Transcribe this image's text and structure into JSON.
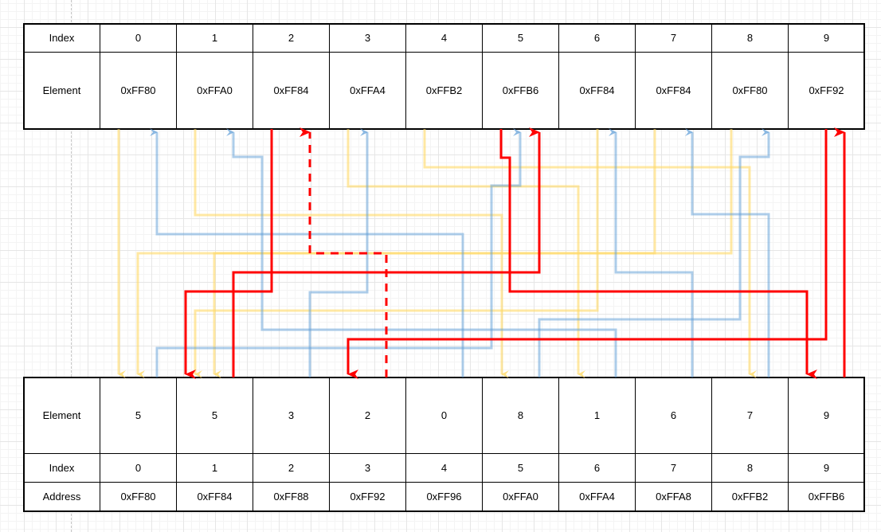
{
  "top_table": {
    "index_label": "Index",
    "element_label": "Element",
    "indices": [
      "0",
      "1",
      "2",
      "3",
      "4",
      "5",
      "6",
      "7",
      "8",
      "9"
    ],
    "elements": [
      "0xFF80",
      "0xFFA0",
      "0xFF84",
      "0xFFA4",
      "0xFFB2",
      "0xFFB6",
      "0xFF84",
      "0xFF84",
      "0xFF80",
      "0xFF92"
    ]
  },
  "bottom_table": {
    "element_label": "Element",
    "index_label": "Index",
    "address_label": "Address",
    "elements": [
      "5",
      "5",
      "3",
      "2",
      "0",
      "8",
      "1",
      "6",
      "7",
      "9"
    ],
    "indices": [
      "0",
      "1",
      "2",
      "3",
      "4",
      "5",
      "6",
      "7",
      "8",
      "9"
    ],
    "addresses": [
      "0xFF80",
      "0xFF84",
      "0xFF88",
      "0xFF92",
      "0xFF96",
      "0xFFA0",
      "0xFFA4",
      "0xFFA8",
      "0xFFB2",
      "0xFFB6"
    ]
  },
  "colors": {
    "yellow": "#FFD966",
    "blue": "#5B9BD5",
    "red": "#FF0000",
    "border": "#000000"
  }
}
